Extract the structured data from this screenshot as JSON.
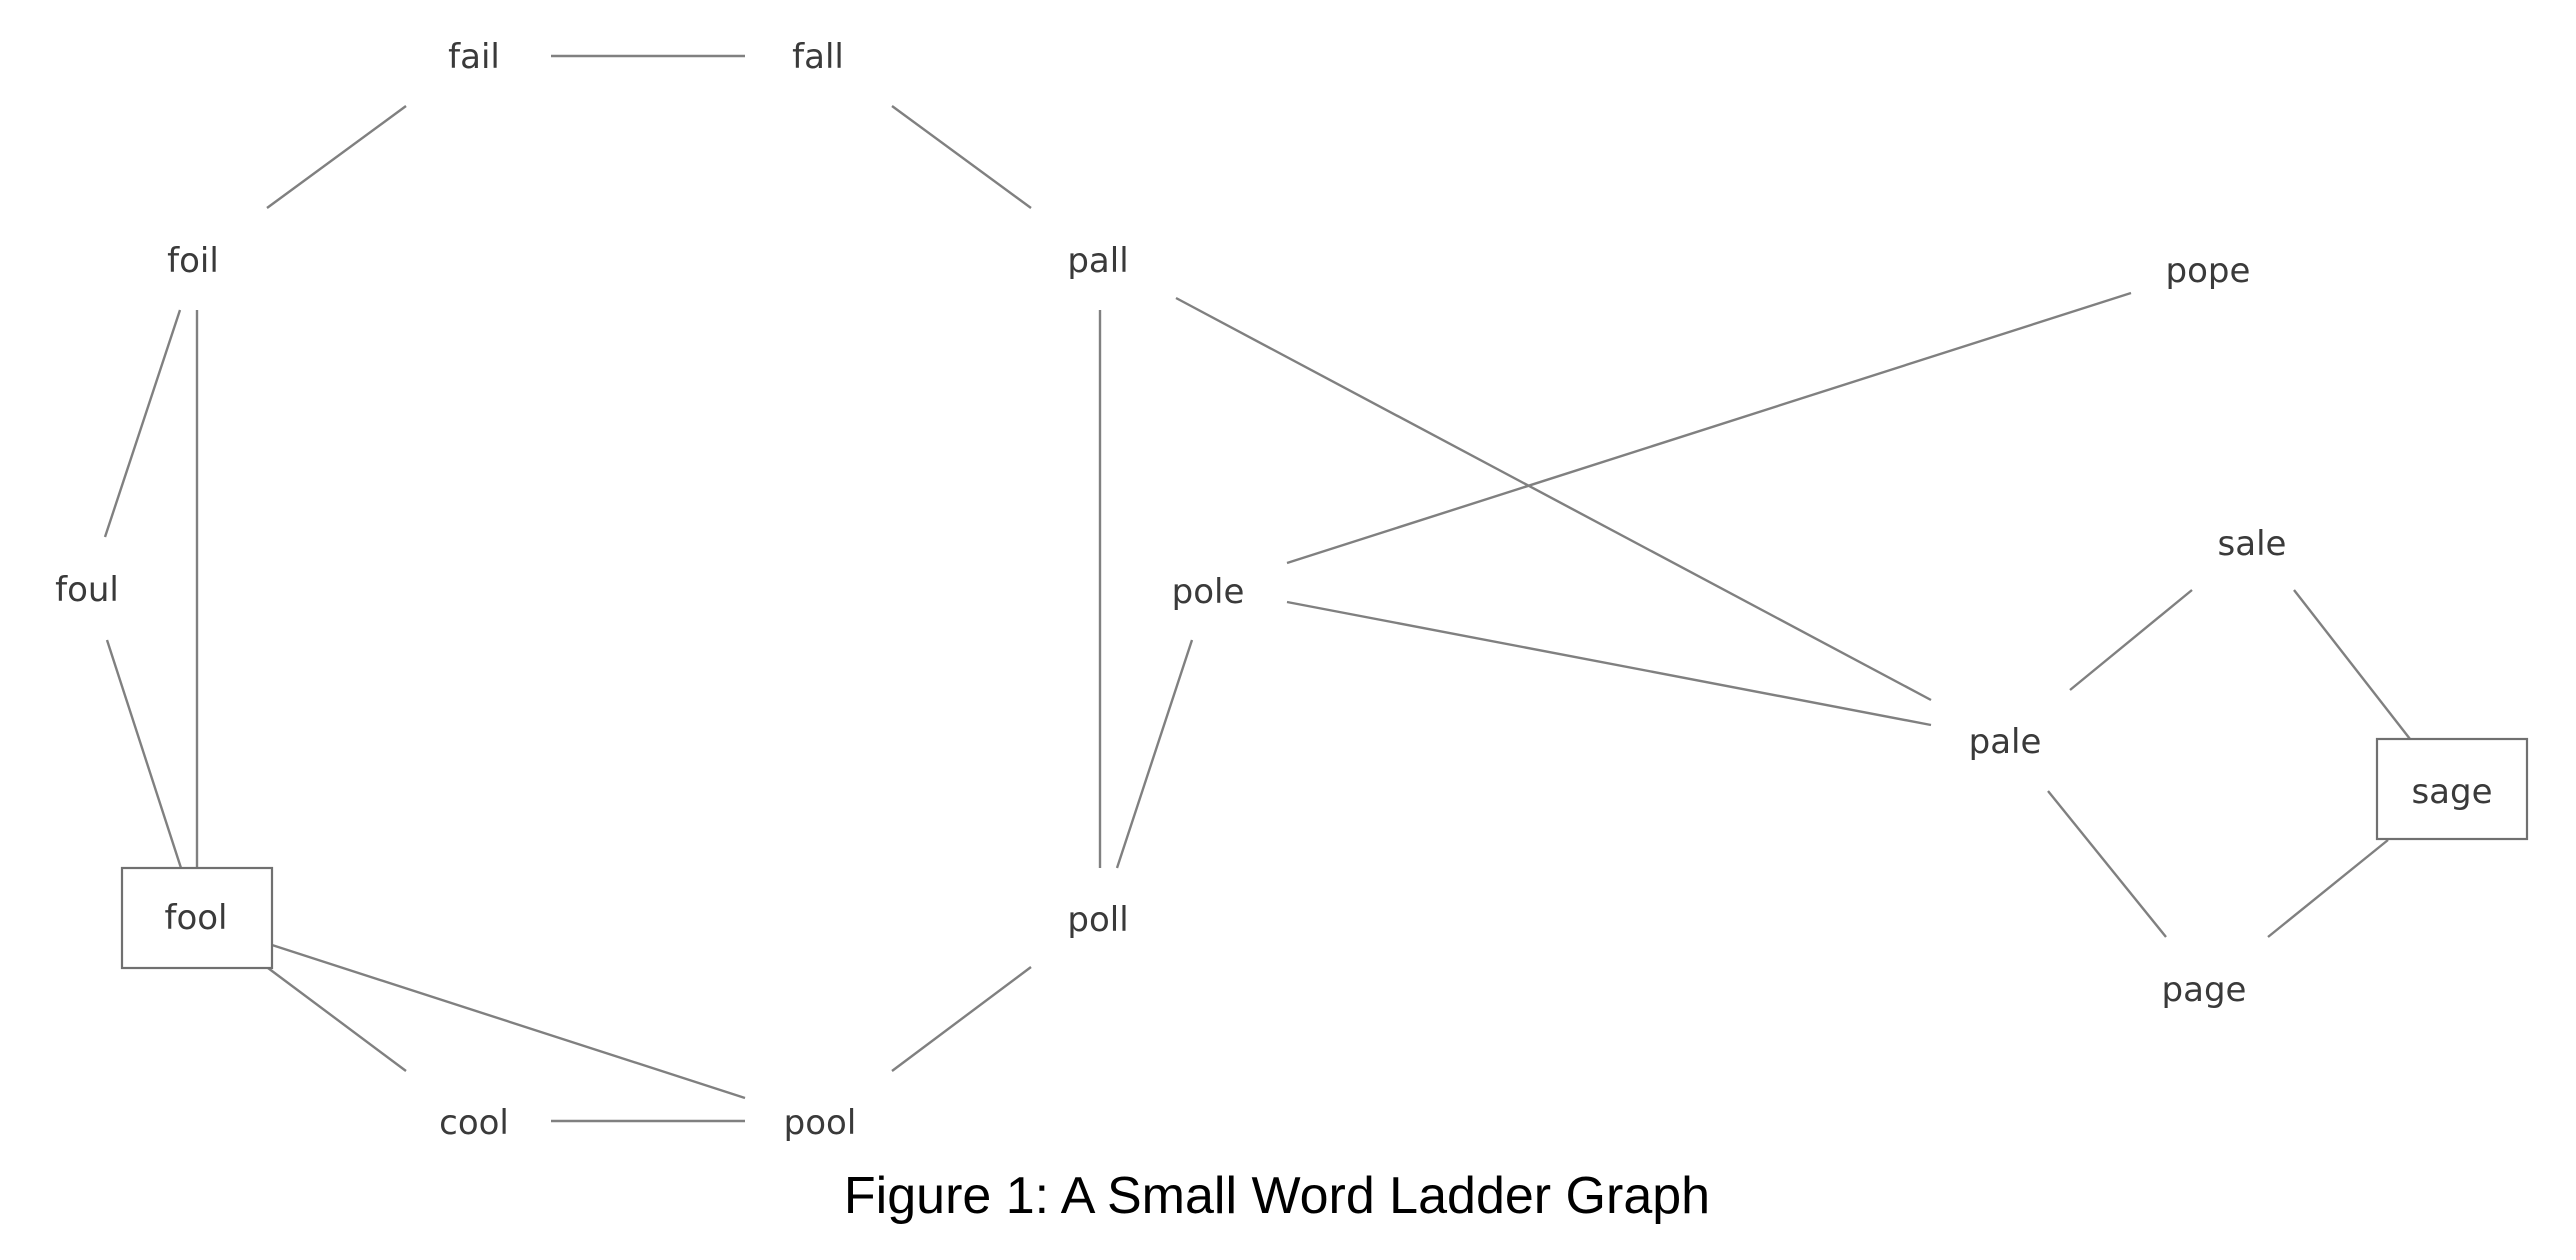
{
  "figure": {
    "caption": "Figure 1: A Small Word Ladder Graph"
  },
  "graph": {
    "nodes": [
      {
        "id": "fail",
        "label": "fail",
        "boxed": false
      },
      {
        "id": "fall",
        "label": "fall",
        "boxed": false
      },
      {
        "id": "foil",
        "label": "foil",
        "boxed": false
      },
      {
        "id": "pall",
        "label": "pall",
        "boxed": false
      },
      {
        "id": "pope",
        "label": "pope",
        "boxed": false
      },
      {
        "id": "foul",
        "label": "foul",
        "boxed": false
      },
      {
        "id": "pole",
        "label": "pole",
        "boxed": false
      },
      {
        "id": "sale",
        "label": "sale",
        "boxed": false
      },
      {
        "id": "pale",
        "label": "pale",
        "boxed": false
      },
      {
        "id": "sage",
        "label": "sage",
        "boxed": true
      },
      {
        "id": "fool",
        "label": "fool",
        "boxed": true
      },
      {
        "id": "poll",
        "label": "poll",
        "boxed": false
      },
      {
        "id": "page",
        "label": "page",
        "boxed": false
      },
      {
        "id": "cool",
        "label": "cool",
        "boxed": false
      },
      {
        "id": "pool",
        "label": "pool",
        "boxed": false
      }
    ],
    "edges": [
      [
        "fail",
        "fall"
      ],
      [
        "fail",
        "foil"
      ],
      [
        "fall",
        "pall"
      ],
      [
        "foil",
        "foul"
      ],
      [
        "foil",
        "fool"
      ],
      [
        "foul",
        "fool"
      ],
      [
        "fool",
        "cool"
      ],
      [
        "fool",
        "pool"
      ],
      [
        "cool",
        "pool"
      ],
      [
        "pool",
        "poll"
      ],
      [
        "pall",
        "poll"
      ],
      [
        "pall",
        "pale"
      ],
      [
        "poll",
        "pole"
      ],
      [
        "pole",
        "pope"
      ],
      [
        "pole",
        "pale"
      ],
      [
        "pale",
        "sale"
      ],
      [
        "pale",
        "page"
      ],
      [
        "sale",
        "sage"
      ],
      [
        "page",
        "sage"
      ]
    ]
  }
}
